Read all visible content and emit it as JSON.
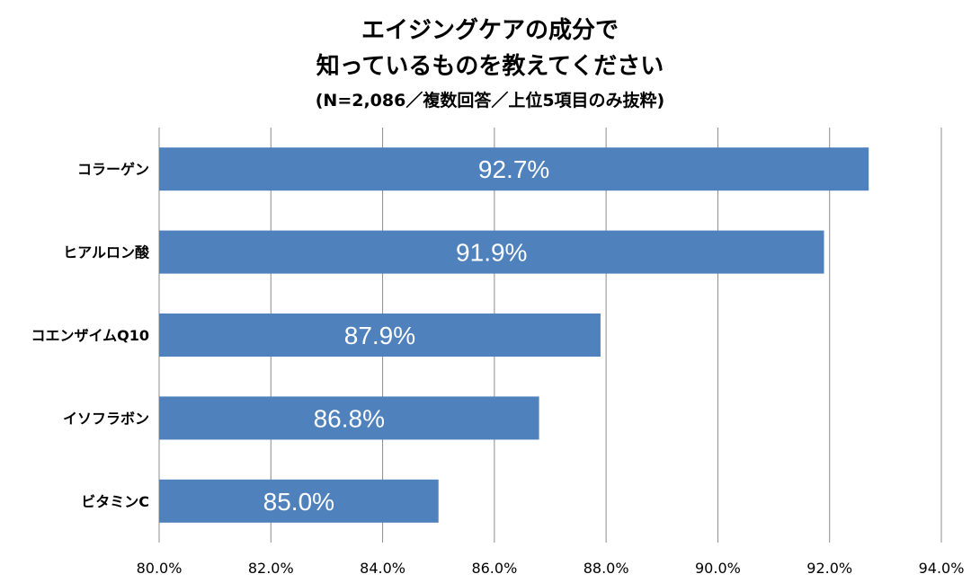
{
  "chart_data": {
    "type": "bar",
    "orientation": "horizontal",
    "title": [
      "エイジングケアの成分で",
      "知っているものを教えてください"
    ],
    "subtitle": "(N=2,086／複数回答／上位5項目のみ抜粋)",
    "categories": [
      "コラーゲン",
      "ヒアルロン酸",
      "コエンザイムQ10",
      "イソフラボン",
      "ビタミンC"
    ],
    "values": [
      92.7,
      91.9,
      87.9,
      86.8,
      85.0
    ],
    "data_labels": [
      "92.7%",
      "91.9%",
      "87.9%",
      "86.8%",
      "85.0%"
    ],
    "x_ticks": [
      "80.0%",
      "82.0%",
      "84.0%",
      "86.0%",
      "88.0%",
      "90.0%",
      "92.0%",
      "94.0%"
    ],
    "xlim": [
      80,
      94
    ],
    "grid": "vertical",
    "legend": "none",
    "colors": {
      "bar": "#4f81bd",
      "grid": "#8c8c8c",
      "label": "#ffffff"
    }
  }
}
